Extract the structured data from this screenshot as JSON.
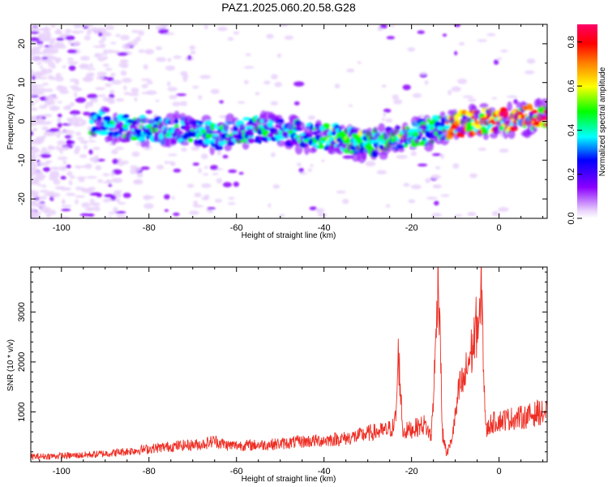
{
  "title": "PAZ1.2025.060.20.58.G28",
  "chart_data": [
    {
      "type": "heatmap",
      "xlabel": "Height of straight line (km)",
      "ylabel": "Frequency (Hz)",
      "xlim": [
        -107,
        11
      ],
      "ylim": [
        -25,
        25
      ],
      "xticks": [
        -100,
        -80,
        -60,
        -40,
        -20,
        0
      ],
      "yticks": [
        -20,
        -10,
        0,
        10,
        20
      ],
      "colorbar": {
        "label": "Normalized spectral amplitude",
        "range": [
          0.0,
          0.88
        ],
        "ticks": [
          "0.0",
          "0.2",
          "0.4",
          "0.6",
          "0.8"
        ],
        "colors": [
          "#e9d2fb",
          "#8b00ff",
          "#0000ff",
          "#00ffff",
          "#00ff00",
          "#ffff00",
          "#ff8000",
          "#ff0000",
          "#ff0066"
        ]
      },
      "ridge": {
        "name": "",
        "x": [
          -92,
          -88,
          -84,
          -80,
          -76,
          -72,
          -68,
          -64,
          -60,
          -56,
          -52,
          -48,
          -44,
          -40,
          -36,
          -32,
          -28,
          -24,
          -20,
          -16,
          -12,
          -8,
          -4,
          0,
          4,
          8,
          11
        ],
        "y": [
          -0.5,
          -1,
          -1.5,
          -2,
          -2.5,
          -2,
          -3,
          -4,
          -2.5,
          -2,
          -2.5,
          -3,
          -3.5,
          -4,
          -4.5,
          -5.5,
          -5.5,
          -4.5,
          -3.5,
          -2.5,
          -1.5,
          -0.5,
          0,
          0.5,
          0.5,
          1,
          1
        ]
      }
    },
    {
      "type": "line",
      "xlabel": "Height of straight line (km)",
      "ylabel": "SNR (10 * v/v)",
      "xlim": [
        -107,
        11
      ],
      "ylim": [
        0,
        3900
      ],
      "xticks": [
        -100,
        -80,
        -60,
        -40,
        -20,
        0
      ],
      "yticks": [
        1000,
        2000,
        3000
      ],
      "color": "#ee2e24",
      "series": [
        {
          "name": "",
          "x": [
            -107,
            -104,
            -100,
            -96,
            -92,
            -88,
            -84,
            -80,
            -76,
            -72,
            -68,
            -65,
            -62,
            -58,
            -54,
            -50,
            -46,
            -42,
            -40,
            -38,
            -35,
            -32,
            -30,
            -28,
            -26,
            -24,
            -23.5,
            -23,
            -22,
            -20,
            -18.5,
            -17,
            -15.5,
            -14.5,
            -14,
            -13.5,
            -13,
            -12.5,
            -12,
            -11,
            -10,
            -9,
            -8,
            -7,
            -6,
            -5,
            -4.5,
            -4,
            -3.5,
            -3,
            -2.5,
            -2,
            -1,
            0,
            2,
            4,
            6,
            8,
            9,
            10,
            11
          ],
          "y": [
            100,
            110,
            120,
            130,
            150,
            180,
            220,
            260,
            300,
            330,
            350,
            420,
            330,
            330,
            340,
            360,
            400,
            420,
            430,
            450,
            470,
            520,
            570,
            600,
            620,
            700,
            1000,
            2200,
            600,
            650,
            700,
            750,
            500,
            2200,
            3900,
            2900,
            600,
            400,
            150,
            380,
            900,
            1500,
            1600,
            2000,
            2300,
            2800,
            2600,
            3600,
            1800,
            600,
            680,
            760,
            800,
            820,
            860,
            880,
            900,
            950,
            1000,
            960,
            1000
          ]
        }
      ]
    }
  ]
}
